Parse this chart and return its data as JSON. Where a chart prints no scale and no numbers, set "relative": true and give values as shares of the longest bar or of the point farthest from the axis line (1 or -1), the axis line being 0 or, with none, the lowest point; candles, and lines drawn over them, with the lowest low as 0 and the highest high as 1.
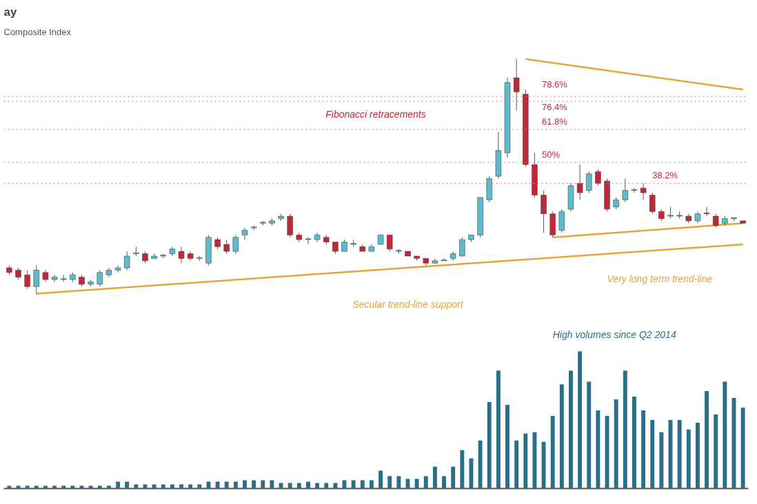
{
  "chart_data": [
    {
      "type": "candlestick",
      "title": "ay",
      "subtitle": "Composite Index",
      "relative": true,
      "categories": [
        null,
        null,
        null,
        null,
        null,
        null,
        null,
        null,
        null,
        null,
        null,
        null,
        null,
        null,
        null,
        null,
        null,
        null,
        null,
        null,
        null,
        null,
        null,
        null,
        null,
        null,
        null,
        null,
        null,
        null,
        null,
        null,
        null,
        null,
        null,
        null,
        null,
        null,
        null,
        null,
        null,
        null,
        null,
        null,
        null,
        null,
        null,
        null,
        null,
        null,
        null,
        null,
        null,
        null,
        null,
        null,
        null,
        null,
        null,
        null,
        null,
        null,
        null,
        null,
        null,
        null,
        null,
        null,
        null,
        null,
        null,
        null,
        null,
        null,
        null,
        null,
        null,
        null,
        null,
        null,
        null,
        null
      ],
      "ohlc": [
        [
          0.11,
          0.12,
          0.08,
          0.09
        ],
        [
          0.1,
          0.11,
          0.06,
          0.07
        ],
        [
          0.08,
          0.1,
          0.02,
          0.03
        ],
        [
          0.03,
          0.12,
          0,
          0.1
        ],
        [
          0.09,
          0.1,
          0.05,
          0.06
        ],
        [
          0.06,
          0.08,
          0.05,
          0.07
        ],
        [
          0.06,
          0.08,
          0.05,
          0.06
        ],
        [
          0.06,
          0.09,
          0.05,
          0.08
        ],
        [
          0.07,
          0.08,
          0.03,
          0.04
        ],
        [
          0.04,
          0.06,
          0.03,
          0.05
        ],
        [
          0.04,
          0.1,
          0.03,
          0.09
        ],
        [
          0.08,
          0.11,
          0.07,
          0.1
        ],
        [
          0.1,
          0.12,
          0.09,
          0.11
        ],
        [
          0.11,
          0.18,
          0.1,
          0.16
        ],
        [
          0.17,
          0.2,
          0.16,
          0.17
        ],
        [
          0.17,
          0.18,
          0.13,
          0.14
        ],
        [
          0.15,
          0.17,
          0.15,
          0.16
        ],
        [
          0.16,
          0.17,
          0.15,
          0.16
        ],
        [
          0.17,
          0.2,
          0.16,
          0.19
        ],
        [
          0.18,
          0.2,
          0.13,
          0.15
        ],
        [
          0.17,
          0.18,
          0.14,
          0.15
        ],
        [
          0.15,
          0.16,
          0.14,
          0.15
        ],
        [
          0.13,
          0.25,
          0.12,
          0.24
        ],
        [
          0.23,
          0.24,
          0.19,
          0.2
        ],
        [
          0.21,
          0.23,
          0.17,
          0.18
        ],
        [
          0.18,
          0.25,
          0.17,
          0.24
        ],
        [
          0.25,
          0.28,
          0.23,
          0.27
        ],
        [
          0.28,
          0.29,
          0.27,
          0.28
        ],
        [
          0.3,
          0.31,
          0.29,
          0.3
        ],
        [
          0.3,
          0.32,
          0.29,
          0.31
        ],
        [
          0.32,
          0.34,
          0.31,
          0.33
        ],
        [
          0.33,
          0.34,
          0.24,
          0.25
        ],
        [
          0.25,
          0.26,
          0.22,
          0.23
        ],
        [
          0.23,
          0.24,
          0.21,
          0.23
        ],
        [
          0.23,
          0.26,
          0.22,
          0.25
        ],
        [
          0.24,
          0.25,
          0.21,
          0.22
        ],
        [
          0.22,
          0.22,
          0.17,
          0.18
        ],
        [
          0.18,
          0.23,
          0.18,
          0.22
        ],
        [
          0.21,
          0.23,
          0.2,
          0.21
        ],
        [
          0.2,
          0.21,
          0.18,
          0.18
        ],
        [
          0.18,
          0.21,
          0.18,
          0.2
        ],
        [
          0.21,
          0.25,
          0.21,
          0.25
        ],
        [
          0.25,
          0.25,
          0.18,
          0.19
        ],
        [
          0.18,
          0.19,
          0.17,
          0.18
        ],
        [
          0.18,
          0.18,
          0.16,
          0.16
        ],
        [
          0.16,
          0.16,
          0.14,
          0.15
        ],
        [
          0.15,
          0.15,
          0.12,
          0.13
        ],
        [
          0.13,
          0.15,
          0.13,
          0.14
        ],
        [
          0.14,
          0.15,
          0.14,
          0.14
        ],
        [
          0.15,
          0.18,
          0.14,
          0.17
        ],
        [
          0.16,
          0.24,
          0.16,
          0.23
        ],
        [
          0.23,
          0.25,
          0.22,
          0.25
        ],
        [
          0.25,
          0.41,
          0.24,
          0.41
        ],
        [
          0.4,
          0.5,
          0.39,
          0.49
        ],
        [
          0.5,
          0.69,
          0.49,
          0.61
        ],
        [
          0.6,
          0.92,
          0.58,
          0.9
        ],
        [
          0.92,
          1,
          0.78,
          0.86
        ],
        [
          0.85,
          0.87,
          0.54,
          0.55
        ],
        [
          0.55,
          0.6,
          0.41,
          0.42
        ],
        [
          0.42,
          0.44,
          0.26,
          0.34
        ],
        [
          0.34,
          0.35,
          0.24,
          0.25
        ],
        [
          0.27,
          0.36,
          0.26,
          0.35
        ],
        [
          0.36,
          0.47,
          0.35,
          0.46
        ],
        [
          0.47,
          0.55,
          0.4,
          0.43
        ],
        [
          0.44,
          0.52,
          0.43,
          0.51
        ],
        [
          0.52,
          0.53,
          0.46,
          0.47
        ],
        [
          0.48,
          0.49,
          0.35,
          0.36
        ],
        [
          0.37,
          0.41,
          0.36,
          0.4
        ],
        [
          0.4,
          0.49,
          0.39,
          0.44
        ],
        [
          0.44,
          0.45,
          0.43,
          0.44
        ],
        [
          0.45,
          0.47,
          0.4,
          0.43
        ],
        [
          0.42,
          0.43,
          0.34,
          0.35
        ],
        [
          0.35,
          0.36,
          0.31,
          0.32
        ],
        [
          0.33,
          0.37,
          0.32,
          0.33
        ],
        [
          0.33,
          0.35,
          0.32,
          0.33
        ],
        [
          0.33,
          0.34,
          0.3,
          0.31
        ],
        [
          0.31,
          0.35,
          0.3,
          0.34
        ],
        [
          0.34,
          0.37,
          0.33,
          0.34
        ],
        [
          0.33,
          0.34,
          0.28,
          0.29
        ],
        [
          0.3,
          0.33,
          0.29,
          0.32
        ],
        [
          0.32,
          0.32,
          0.31,
          0.32
        ],
        [
          0.31,
          0.31,
          0.3,
          0.3
        ]
      ],
      "colors": [
        "#c0283a",
        "#c0283a",
        "#c0283a",
        "#5bbccc",
        "#c0283a",
        "#5bbccc",
        "#5bbccc",
        "#5bbccc",
        "#c0283a",
        "#5bbccc",
        "#5bbccc",
        "#5bbccc",
        "#5bbccc",
        "#5bbccc",
        "#5bbccc",
        "#c0283a",
        "#5bbccc",
        "#5bbccc",
        "#5bbccc",
        "#c0283a",
        "#c0283a",
        "#5bbccc",
        "#5bbccc",
        "#c0283a",
        "#c0283a",
        "#5bbccc",
        "#5bbccc",
        "#5bbccc",
        "#5bbccc",
        "#5bbccc",
        "#5bbccc",
        "#c0283a",
        "#c0283a",
        "#5bbccc",
        "#5bbccc",
        "#c0283a",
        "#c0283a",
        "#5bbccc",
        "#5bbccc",
        "#c0283a",
        "#5bbccc",
        "#5bbccc",
        "#c0283a",
        "#5bbccc",
        "#c0283a",
        "#c0283a",
        "#c0283a",
        "#5bbccc",
        "#5bbccc",
        "#5bbccc",
        "#5bbccc",
        "#5bbccc",
        "#5bbccc",
        "#5bbccc",
        "#5bbccc",
        "#5bbccc",
        "#c0283a",
        "#c0283a",
        "#c0283a",
        "#c0283a",
        "#c0283a",
        "#5bbccc",
        "#5bbccc",
        "#c0283a",
        "#5bbccc",
        "#c0283a",
        "#c0283a",
        "#5bbccc",
        "#5bbccc",
        "#5bbccc",
        "#c0283a",
        "#c0283a",
        "#c0283a",
        "#5bbccc",
        "#5bbccc",
        "#c0283a",
        "#5bbccc",
        "#c0283a",
        "#c0283a",
        "#5bbccc",
        "#5bbccc",
        "#c0283a"
      ],
      "series": [
        {
          "type": "line",
          "color": "#e8a33c",
          "values": [
            null,
            null,
            null,
            0,
            null,
            null,
            null,
            null,
            null,
            null,
            null,
            null,
            null,
            null,
            null,
            null,
            null,
            null,
            null,
            null,
            null,
            null,
            null,
            null,
            null,
            null,
            null,
            null,
            null,
            null,
            null,
            null,
            null,
            null,
            null,
            null,
            null,
            null,
            null,
            null,
            null,
            null,
            null,
            null,
            null,
            null,
            null,
            null,
            null,
            null,
            null,
            null,
            null,
            null,
            null,
            null,
            null,
            null,
            null,
            null,
            null,
            null,
            null,
            null,
            null,
            null,
            null,
            null,
            null,
            null,
            null,
            null,
            null,
            null,
            null,
            null,
            null,
            null,
            null,
            null,
            null,
            0.21
          ]
        },
        {
          "type": "line",
          "color": "#e8a33c",
          "values": [
            null,
            null,
            null,
            null,
            null,
            null,
            null,
            null,
            null,
            null,
            null,
            null,
            null,
            null,
            null,
            null,
            null,
            null,
            null,
            null,
            null,
            null,
            null,
            null,
            null,
            null,
            null,
            null,
            null,
            null,
            null,
            null,
            null,
            null,
            null,
            null,
            null,
            null,
            null,
            null,
            null,
            null,
            null,
            null,
            null,
            null,
            null,
            null,
            null,
            null,
            null,
            null,
            null,
            null,
            null,
            null,
            null,
            null,
            null,
            null,
            0.24,
            null,
            null,
            null,
            null,
            null,
            null,
            null,
            null,
            null,
            null,
            null,
            null,
            null,
            null,
            null,
            null,
            null,
            null,
            null,
            null,
            0.3
          ]
        },
        {
          "type": "line",
          "color": "#e8a33c",
          "values": [
            null,
            null,
            null,
            null,
            null,
            null,
            null,
            null,
            null,
            null,
            null,
            null,
            null,
            null,
            null,
            null,
            null,
            null,
            null,
            null,
            null,
            null,
            null,
            null,
            null,
            null,
            null,
            null,
            null,
            null,
            null,
            null,
            null,
            null,
            null,
            null,
            null,
            null,
            null,
            null,
            null,
            null,
            null,
            null,
            null,
            null,
            null,
            null,
            null,
            null,
            null,
            null,
            null,
            null,
            null,
            null,
            null,
            1,
            null,
            null,
            null,
            null,
            null,
            null,
            null,
            null,
            null,
            null,
            null,
            null,
            null,
            null,
            null,
            null,
            null,
            null,
            null,
            null,
            null,
            null,
            null,
            0.87
          ]
        }
      ],
      "ref_lines": [
        {
          "axis": "y",
          "value": 0.84,
          "color": "#d9707c",
          "line_style": "dotted"
        },
        {
          "axis": "y",
          "value": 0.82,
          "color": "#d9707c",
          "line_style": "dotted"
        },
        {
          "axis": "y",
          "value": 0.7,
          "color": "#d9707c",
          "line_style": "dotted"
        },
        {
          "axis": "y",
          "value": 0.56,
          "color": "#d9707c",
          "line_style": "dotted"
        },
        {
          "axis": "y",
          "value": 0.47,
          "color": "#d9707c",
          "line_style": "dotted"
        }
      ],
      "annotations": [
        "Fibonacci retracements",
        "Secular trend-line support",
        "Very long term trend-line",
        "78.6%",
        "76.4%",
        "61.8%",
        "50%",
        "38.2%"
      ]
    },
    {
      "type": "bar",
      "relative": true,
      "color": "#2a6f8a",
      "categories": [
        null,
        null,
        null,
        null,
        null,
        null,
        null,
        null,
        null,
        null,
        null,
        null,
        null,
        null,
        null,
        null,
        null,
        null,
        null,
        null,
        null,
        null,
        null,
        null,
        null,
        null,
        null,
        null,
        null,
        null,
        null,
        null,
        null,
        null,
        null,
        null,
        null,
        null,
        null,
        null,
        null,
        null,
        null,
        null,
        null,
        null,
        null,
        null,
        null,
        null,
        null,
        null,
        null,
        null,
        null,
        null,
        null,
        null,
        null,
        null,
        null,
        null,
        null,
        null,
        null,
        null,
        null,
        null,
        null,
        null,
        null,
        null,
        null,
        null,
        null,
        null,
        null,
        null,
        null,
        null,
        null,
        null
      ],
      "values": [
        0.02,
        0.02,
        0.02,
        0.02,
        0.02,
        0.02,
        0.02,
        0.02,
        0.02,
        0.02,
        0.02,
        0.02,
        0.05,
        0.05,
        0.03,
        0.03,
        0.03,
        0.03,
        0.03,
        0.03,
        0.03,
        0.03,
        0.05,
        0.05,
        0.05,
        0.05,
        0.06,
        0.06,
        0.06,
        0.06,
        0.04,
        0.04,
        0.04,
        0.05,
        0.04,
        0.04,
        0.04,
        0.06,
        0.06,
        0.06,
        0.06,
        0.13,
        0.09,
        0.09,
        0.07,
        0.07,
        0.09,
        0.16,
        0.09,
        0.16,
        0.28,
        0.22,
        0.35,
        0.63,
        0.86,
        0.61,
        0.35,
        0.4,
        0.41,
        0.34,
        0.53,
        0.76,
        0.86,
        1,
        0.78,
        0.57,
        0.53,
        0.65,
        0.86,
        0.67,
        0.57,
        0.5,
        0.41,
        0.5,
        0.5,
        0.43,
        0.48,
        0.71,
        0.54,
        0.78,
        0.66,
        0.59
      ],
      "annotations": [
        "High volumes since Q2 2014"
      ]
    }
  ]
}
